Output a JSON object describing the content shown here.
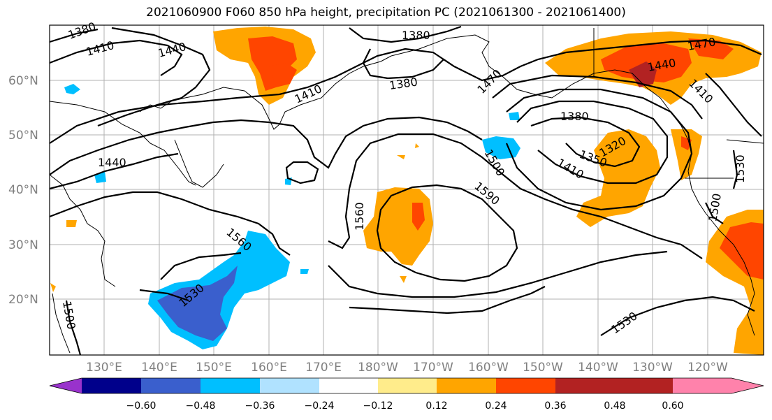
{
  "title": "2021060900 F060 850 hPa height, precipitation PC (2021061300 - 2021061400)",
  "map": {
    "lat_ticks": [
      "60°N",
      "50°N",
      "40°N",
      "30°N",
      "20°N"
    ],
    "lon_ticks": [
      "130°E",
      "140°E",
      "150°E",
      "160°E",
      "170°E",
      "180°W",
      "170°W",
      "160°W",
      "150°W",
      "140°W",
      "130°W",
      "120°W"
    ],
    "contour_labels": [
      "1380",
      "1410",
      "1440",
      "1380",
      "1380",
      "1410",
      "1470",
      "1440",
      "1470",
      "1410",
      "1380",
      "1350",
      "1320",
      "1410",
      "1440",
      "1500",
      "1590",
      "1560",
      "1560",
      "1530",
      "1500",
      "1530",
      "1500",
      "1530"
    ]
  },
  "colorbar": {
    "tick_labels": [
      "−0.60",
      "−0.48",
      "−0.36",
      "−0.24",
      "−0.12",
      "0.12",
      "0.24",
      "0.36",
      "0.48",
      "0.60"
    ],
    "colors": [
      "#9932cc",
      "#00008b",
      "#3a5fcd",
      "#00bfff",
      "#b0e2ff",
      "#ffffff",
      "#ffec8b",
      "#ffa500",
      "#ff4500",
      "#b22222",
      "#ff82ab"
    ]
  }
}
